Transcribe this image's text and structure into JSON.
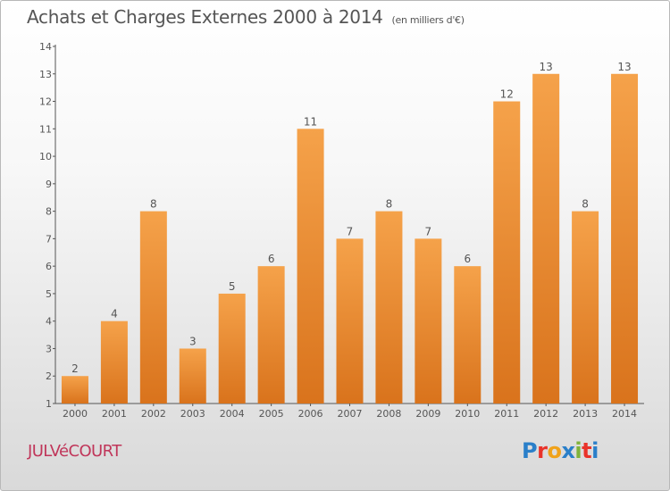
{
  "title": "Achats et Charges Externes 2000 à 2014",
  "unit_label": "(en milliers d'€)",
  "commune": "JULVéCOURT",
  "logo_text": "Proxiti",
  "colors": {
    "bar_light": "#f5a24a",
    "bar_dark": "#d9731c",
    "axis": "#555555",
    "title": "#555555",
    "commune": "#c0365a"
  },
  "chart_data": {
    "type": "bar",
    "categories": [
      "2000",
      "2001",
      "2002",
      "2003",
      "2004",
      "2005",
      "2006",
      "2007",
      "2008",
      "2009",
      "2010",
      "2011",
      "2012",
      "2013",
      "2014"
    ],
    "values": [
      2,
      4,
      8,
      3,
      5,
      6,
      11,
      7,
      8,
      7,
      6,
      12,
      13,
      8,
      13
    ],
    "data_labels": [
      "2",
      "4",
      "8",
      "3",
      "5",
      "6",
      "11",
      "7",
      "8",
      "7",
      "6",
      "12",
      "13",
      "8",
      "13"
    ],
    "title": "Achats et Charges Externes 2000 à 2014",
    "xlabel": "",
    "ylabel": "",
    "ylim": [
      1,
      14
    ],
    "yticks": [
      1,
      2,
      3,
      4,
      5,
      6,
      7,
      8,
      9,
      10,
      11,
      12,
      13,
      14
    ],
    "grid": false,
    "legend": "none"
  }
}
